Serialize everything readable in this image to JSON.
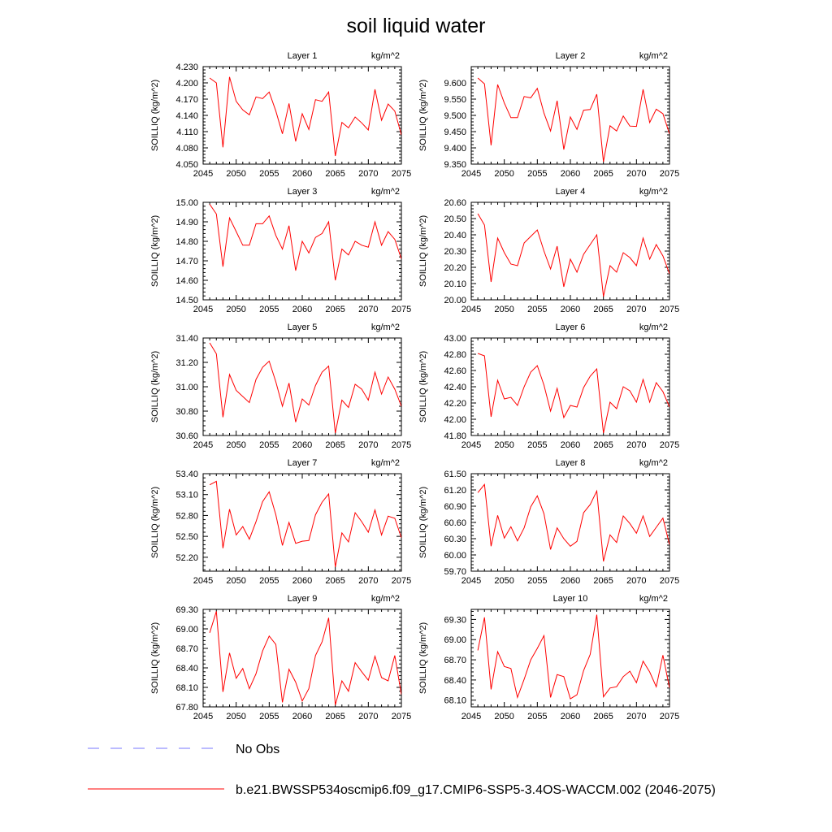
{
  "figure": {
    "title": "soil liquid water",
    "legend": [
      {
        "label": "No Obs",
        "color": "#7777ff",
        "dash": true
      },
      {
        "label": "b.e21.BWSSP534oscmip6.f09_g17.CMIP6-SSP5-3.4OS-WACCM.002 (2046-2075)",
        "color": "#ff0000",
        "dash": false
      }
    ]
  },
  "chart_data": [
    {
      "type": "line",
      "title": "Layer 1",
      "unit": "kg/m^2",
      "ylabel": "SOILLIQ  (kg/m^2)",
      "xlim": [
        2045,
        2075
      ],
      "xticks": [
        2045,
        2050,
        2055,
        2060,
        2065,
        2070,
        2075
      ],
      "ylim": [
        4.05,
        4.23
      ],
      "yticks": [
        "4.050",
        "4.080",
        "4.110",
        "4.140",
        "4.170",
        "4.200",
        "4.230"
      ],
      "x_start": 2046,
      "color": "#ff0000",
      "values": [
        4.209,
        4.2,
        4.081,
        4.211,
        4.166,
        4.15,
        4.141,
        4.174,
        4.171,
        4.183,
        4.148,
        4.106,
        4.162,
        4.092,
        4.143,
        4.114,
        4.169,
        4.166,
        4.183,
        4.065,
        4.127,
        4.117,
        4.137,
        4.126,
        4.113,
        4.188,
        4.131,
        4.161,
        4.148,
        4.104
      ]
    },
    {
      "type": "line",
      "title": "Layer 2",
      "unit": "kg/m^2",
      "ylabel": "SOILLIQ  (kg/m^2)",
      "xlim": [
        2045,
        2075
      ],
      "xticks": [
        2045,
        2050,
        2055,
        2060,
        2065,
        2070,
        2075
      ],
      "ylim": [
        9.35,
        9.65
      ],
      "yticks": [
        "9.350",
        "9.400",
        "9.450",
        "9.500",
        "9.550",
        "9.600"
      ],
      "x_start": 2046,
      "color": "#ff0000",
      "values": [
        9.615,
        9.597,
        9.408,
        9.595,
        9.538,
        9.493,
        9.493,
        9.558,
        9.554,
        9.583,
        9.507,
        9.452,
        9.545,
        9.395,
        9.495,
        9.457,
        9.516,
        9.518,
        9.565,
        9.357,
        9.468,
        9.452,
        9.498,
        9.467,
        9.466,
        9.58,
        9.478,
        9.519,
        9.505,
        9.443
      ]
    },
    {
      "type": "line",
      "title": "Layer 3",
      "unit": "kg/m^2",
      "ylabel": "SOILLIQ  (kg/m^2)",
      "xlim": [
        2045,
        2075
      ],
      "xticks": [
        2045,
        2050,
        2055,
        2060,
        2065,
        2070,
        2075
      ],
      "ylim": [
        14.5,
        15.0
      ],
      "yticks": [
        "14.50",
        "14.60",
        "14.70",
        "14.80",
        "14.90",
        "15.00"
      ],
      "x_start": 2046,
      "color": "#ff0000",
      "values": [
        14.99,
        14.94,
        14.67,
        14.92,
        14.85,
        14.78,
        14.78,
        14.89,
        14.89,
        14.93,
        14.83,
        14.76,
        14.88,
        14.65,
        14.8,
        14.74,
        14.82,
        14.84,
        14.9,
        14.6,
        14.76,
        14.73,
        14.8,
        14.78,
        14.77,
        14.9,
        14.78,
        14.85,
        14.81,
        14.71
      ]
    },
    {
      "type": "line",
      "title": "Layer 4",
      "unit": "kg/m^2",
      "ylabel": "SOILLIQ  (kg/m^2)",
      "xlim": [
        2045,
        2075
      ],
      "xticks": [
        2045,
        2050,
        2055,
        2060,
        2065,
        2070,
        2075
      ],
      "ylim": [
        20.0,
        20.6
      ],
      "yticks": [
        "20.00",
        "20.10",
        "20.20",
        "20.30",
        "20.40",
        "20.50",
        "20.60"
      ],
      "x_start": 2046,
      "color": "#ff0000",
      "values": [
        20.53,
        20.46,
        20.11,
        20.38,
        20.29,
        20.22,
        20.21,
        20.35,
        20.39,
        20.43,
        20.3,
        20.19,
        20.33,
        20.08,
        20.25,
        20.17,
        20.28,
        20.34,
        20.4,
        20.02,
        20.21,
        20.17,
        20.29,
        20.26,
        20.21,
        20.38,
        20.25,
        20.34,
        20.27,
        20.16
      ]
    },
    {
      "type": "line",
      "title": "Layer 5",
      "unit": "kg/m^2",
      "ylabel": "SOILLIQ  (kg/m^2)",
      "xlim": [
        2045,
        2075
      ],
      "xticks": [
        2045,
        2050,
        2055,
        2060,
        2065,
        2070,
        2075
      ],
      "ylim": [
        30.6,
        31.4
      ],
      "yticks": [
        "30.60",
        "30.80",
        "31.00",
        "31.20",
        "31.40"
      ],
      "x_start": 2046,
      "color": "#ff0000",
      "values": [
        31.36,
        31.27,
        30.75,
        31.1,
        30.97,
        30.92,
        30.87,
        31.06,
        31.16,
        31.21,
        31.04,
        30.84,
        31.03,
        30.71,
        30.9,
        30.85,
        31.01,
        31.12,
        31.17,
        30.62,
        30.89,
        30.83,
        31.02,
        30.98,
        30.89,
        31.12,
        30.94,
        31.08,
        30.98,
        30.84
      ]
    },
    {
      "type": "line",
      "title": "Layer 6",
      "unit": "kg/m^2",
      "ylabel": "SOILLIQ  (kg/m^2)",
      "xlim": [
        2045,
        2075
      ],
      "xticks": [
        2045,
        2050,
        2055,
        2060,
        2065,
        2070,
        2075
      ],
      "ylim": [
        41.8,
        43.0
      ],
      "yticks": [
        "41.80",
        "42.00",
        "42.20",
        "42.40",
        "42.60",
        "42.80",
        "43.00"
      ],
      "x_start": 2046,
      "color": "#ff0000",
      "values": [
        42.81,
        42.78,
        42.03,
        42.48,
        42.25,
        42.27,
        42.17,
        42.4,
        42.58,
        42.66,
        42.42,
        42.1,
        42.38,
        42.02,
        42.17,
        42.15,
        42.39,
        42.53,
        42.62,
        41.83,
        42.21,
        42.13,
        42.4,
        42.35,
        42.21,
        42.49,
        42.21,
        42.45,
        42.34,
        42.15
      ]
    },
    {
      "type": "line",
      "title": "Layer 7",
      "unit": "kg/m^2",
      "ylabel": "SOILLIQ  (kg/m^2)",
      "xlim": [
        2045,
        2075
      ],
      "xticks": [
        2045,
        2050,
        2055,
        2060,
        2065,
        2070,
        2075
      ],
      "ylim": [
        52.0,
        53.4
      ],
      "yticks": [
        "52.20",
        "52.50",
        "52.80",
        "53.10",
        "53.40"
      ],
      "x_start": 2046,
      "color": "#ff0000",
      "values": [
        53.24,
        53.29,
        52.33,
        52.89,
        52.52,
        52.64,
        52.46,
        52.71,
        53.0,
        53.14,
        52.81,
        52.37,
        52.7,
        52.4,
        52.43,
        52.44,
        52.81,
        52.99,
        53.11,
        52.06,
        52.55,
        52.42,
        52.84,
        52.71,
        52.56,
        52.88,
        52.52,
        52.79,
        52.76,
        52.48
      ]
    },
    {
      "type": "line",
      "title": "Layer 8",
      "unit": "kg/m^2",
      "ylabel": "SOILLIQ  (kg/m^2)",
      "xlim": [
        2045,
        2075
      ],
      "xticks": [
        2045,
        2050,
        2055,
        2060,
        2065,
        2070,
        2075
      ],
      "ylim": [
        59.7,
        61.5
      ],
      "yticks": [
        "59.70",
        "60.00",
        "60.30",
        "60.60",
        "60.90",
        "61.20",
        "61.50"
      ],
      "x_start": 2046,
      "color": "#ff0000",
      "values": [
        61.15,
        61.3,
        60.16,
        60.73,
        60.31,
        60.52,
        60.26,
        60.5,
        60.89,
        61.09,
        60.76,
        60.1,
        60.5,
        60.3,
        60.16,
        60.25,
        60.78,
        60.93,
        61.18,
        59.88,
        60.37,
        60.23,
        60.72,
        60.58,
        60.4,
        60.72,
        60.34,
        60.51,
        60.68,
        60.19
      ]
    },
    {
      "type": "line",
      "title": "Layer 9",
      "unit": "kg/m^2",
      "ylabel": "SOILLIQ  (kg/m^2)",
      "xlim": [
        2045,
        2075
      ],
      "xticks": [
        2045,
        2050,
        2055,
        2060,
        2065,
        2070,
        2075
      ],
      "ylim": [
        67.8,
        69.3
      ],
      "yticks": [
        "67.80",
        "68.10",
        "68.40",
        "68.70",
        "69.00",
        "69.30"
      ],
      "x_start": 2046,
      "color": "#ff0000",
      "values": [
        68.94,
        69.27,
        68.03,
        68.63,
        68.24,
        68.39,
        68.08,
        68.31,
        68.66,
        68.89,
        68.76,
        67.87,
        68.38,
        68.18,
        67.89,
        68.08,
        68.59,
        68.8,
        69.17,
        67.83,
        68.2,
        68.04,
        68.48,
        68.34,
        68.21,
        68.58,
        68.25,
        68.2,
        68.59,
        67.99
      ]
    },
    {
      "type": "line",
      "title": "Layer 10",
      "unit": "kg/m^2",
      "ylabel": "SOILLIQ  (kg/m^2)",
      "xlim": [
        2045,
        2075
      ],
      "xticks": [
        2045,
        2050,
        2055,
        2060,
        2065,
        2070,
        2075
      ],
      "ylim": [
        68.0,
        69.45
      ],
      "yticks": [
        "68.10",
        "68.40",
        "68.70",
        "69.00",
        "69.30"
      ],
      "x_start": 2046,
      "color": "#ff0000",
      "values": [
        68.84,
        69.33,
        68.26,
        68.82,
        68.6,
        68.57,
        68.14,
        68.41,
        68.7,
        68.87,
        69.06,
        68.14,
        68.48,
        68.45,
        68.12,
        68.18,
        68.54,
        68.78,
        69.37,
        68.15,
        68.28,
        68.3,
        68.45,
        68.53,
        68.36,
        68.68,
        68.52,
        68.3,
        68.77,
        68.28
      ]
    }
  ]
}
